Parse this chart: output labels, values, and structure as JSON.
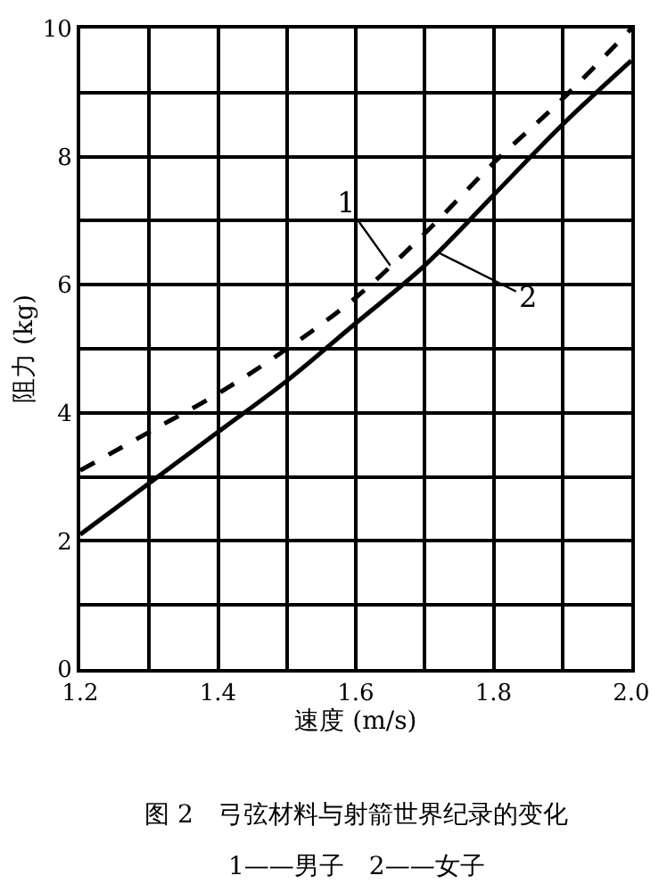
{
  "chart_data": {
    "type": "line",
    "title": "图 2　弓弦材料与射箭世界纪录的变化",
    "subtitle": "1——男子　2——女子",
    "xlabel": "速度 (m/s)",
    "ylabel": "阻力 (kg)",
    "x": [
      1.2,
      1.3,
      1.4,
      1.5,
      1.6,
      1.7,
      1.8,
      1.9,
      2.0
    ],
    "series": [
      {
        "color": "#000000",
        "line_style": "dashed",
        "values": [
          3.1,
          3.7,
          4.3,
          5.0,
          5.8,
          6.8,
          7.9,
          8.9,
          10.0
        ]
      },
      {
        "color": "#000000",
        "line_style": "solid",
        "values": [
          2.1,
          2.9,
          3.7,
          4.5,
          5.4,
          6.3,
          7.4,
          8.5,
          9.5
        ]
      }
    ],
    "annotations": [
      {
        "text": "1",
        "x": 1.65,
        "y": 6.3
      },
      {
        "text": "2",
        "x": 1.72,
        "y": 6.5
      }
    ],
    "xlim": [
      1.2,
      2.0
    ],
    "xticks": [
      1.2,
      1.4,
      1.6,
      1.8,
      {
        "value": 2.0,
        "label": "2.0"
      }
    ],
    "ylim": [
      0,
      10
    ],
    "yticks": [
      0,
      2,
      4,
      6,
      8,
      10
    ],
    "grid": true
  }
}
